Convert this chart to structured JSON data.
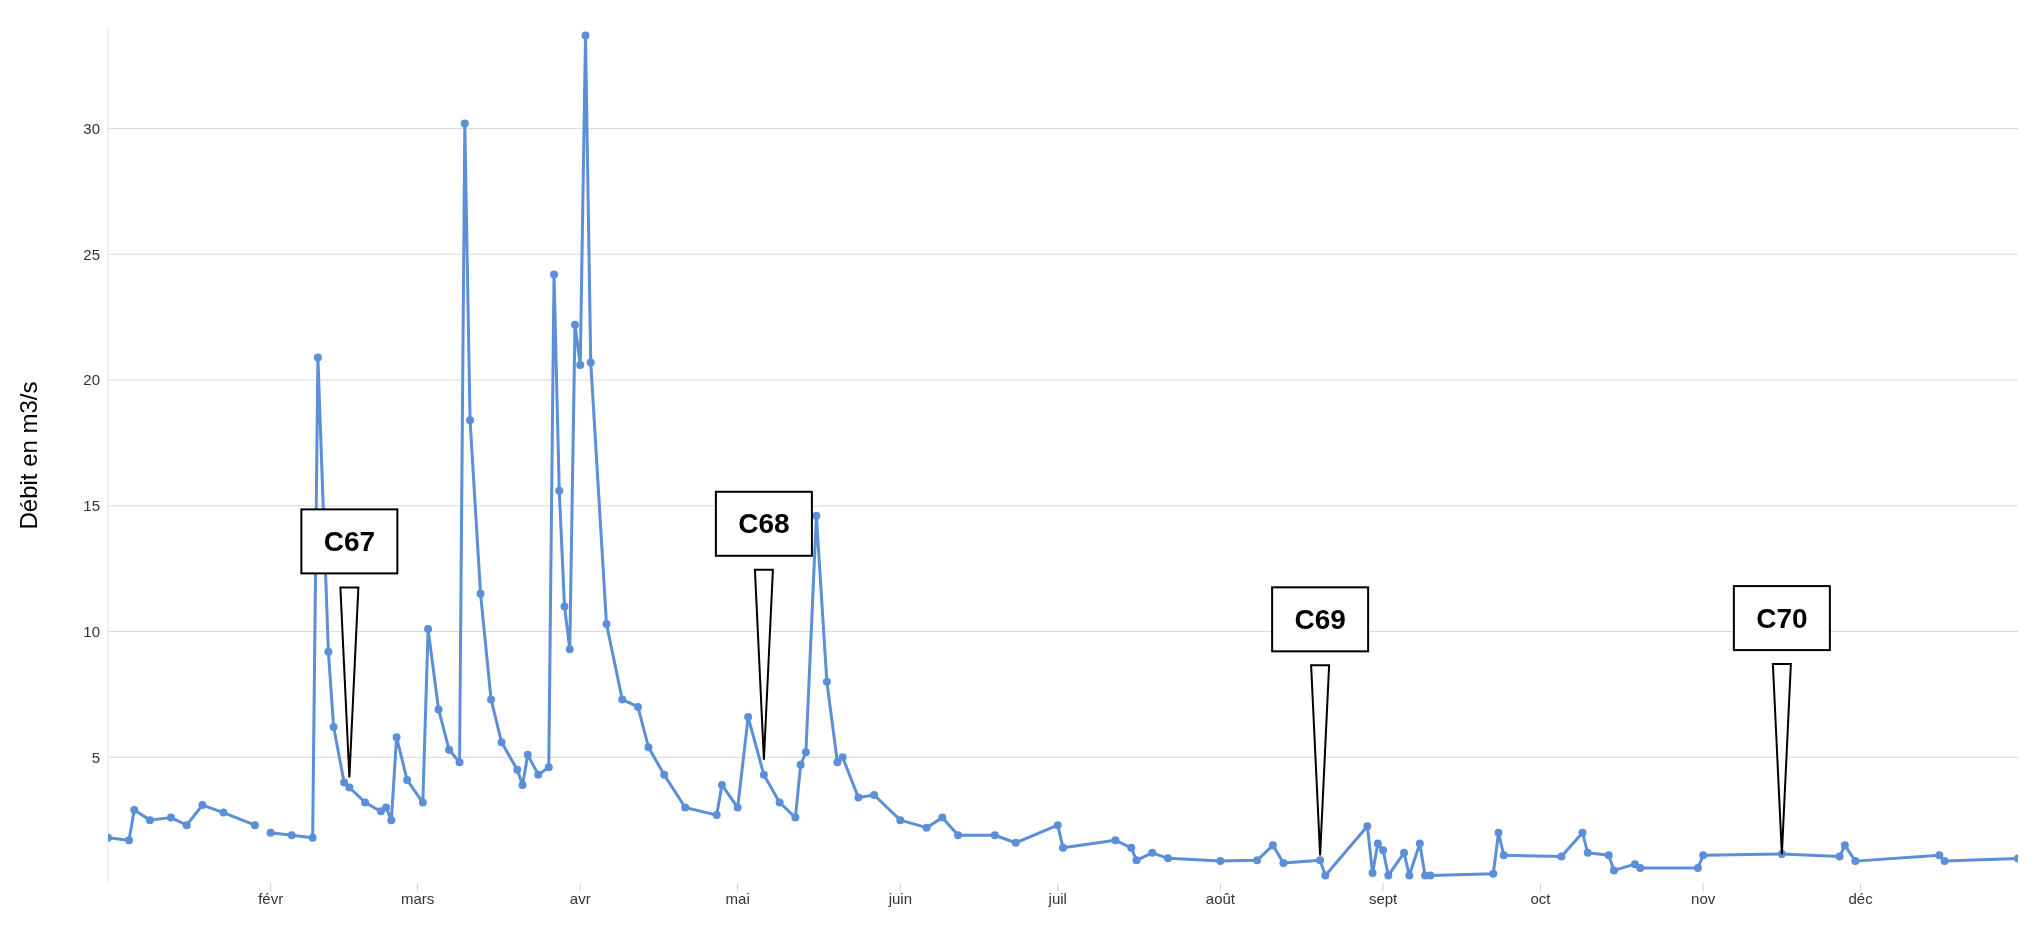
{
  "chart_data": {
    "type": "line",
    "ylabel": "Débit en m3/s",
    "x": [
      "--01-01",
      "--01-05",
      "--01-06",
      "--01-09",
      "--01-13",
      "--01-16",
      "--01-19",
      "--01-23",
      "--01-29",
      "--01-30",
      "--02-01",
      "--02-05",
      "--02-09",
      "--02-10",
      "--02-12",
      "--02-13",
      "--02-15",
      "--02-16",
      "--02-19",
      "--02-22",
      "--02-23",
      "--02-24",
      "--02-25",
      "--02-27",
      "--03-02",
      "--03-03",
      "--03-05",
      "--03-07",
      "--03-09",
      "--03-10",
      "--03-11",
      "--03-13",
      "--03-15",
      "--03-17",
      "--03-20",
      "--03-21",
      "--03-22",
      "--03-24",
      "--03-26",
      "--03-27",
      "--03-28",
      "--03-29",
      "--03-30",
      "--03-31",
      "--04-01",
      "--04-02",
      "--04-03",
      "--04-06",
      "--04-09",
      "--04-12",
      "--04-14",
      "--04-17",
      "--04-21",
      "--04-27",
      "--04-28",
      "--05-01",
      "--05-03",
      "--05-06",
      "--05-09",
      "--05-12",
      "--05-13",
      "--05-14",
      "--05-16",
      "--05-18",
      "--05-20",
      "--05-21",
      "--05-24",
      "--05-27",
      "--06-01",
      "--06-06",
      "--06-09",
      "--06-12",
      "--06-19",
      "--06-23",
      "--07-01",
      "--07-02",
      "--07-12",
      "--07-15",
      "--07-16",
      "--07-19",
      "--07-22",
      "--08-01",
      "--08-08",
      "--08-11",
      "--08-13",
      "--08-20",
      "--08-21",
      "--08-29",
      "--08-30",
      "--08-31",
      "--09-01",
      "--09-02",
      "--09-05",
      "--09-06",
      "--09-08",
      "--09-09",
      "--09-10",
      "--09-22",
      "--09-23",
      "--09-24",
      "--10-05",
      "--10-09",
      "--10-10",
      "--10-14",
      "--10-15",
      "--10-19",
      "--10-20",
      "--10-31",
      "--11-01",
      "--11-16",
      "--11-27",
      "--11-28",
      "--11-30",
      "--12-16",
      "--12-17",
      "--12-31"
    ],
    "series": [
      {
        "color": "#5b8fd8",
        "values": [
          1.8,
          1.7,
          2.9,
          2.5,
          2.6,
          2.3,
          3.1,
          2.8,
          2.3,
          null,
          2.0,
          1.9,
          1.8,
          20.9,
          9.2,
          6.2,
          4.0,
          3.8,
          3.2,
          2.85,
          3.0,
          2.5,
          5.8,
          4.1,
          3.2,
          10.1,
          6.9,
          5.3,
          4.8,
          30.2,
          18.4,
          11.5,
          7.3,
          5.6,
          4.5,
          3.9,
          5.1,
          4.3,
          4.6,
          24.2,
          15.6,
          11.0,
          9.3,
          22.2,
          20.6,
          33.7,
          20.7,
          10.3,
          7.3,
          7.0,
          5.4,
          4.3,
          3.0,
          2.7,
          3.9,
          3.0,
          6.6,
          4.3,
          3.2,
          2.6,
          4.7,
          5.2,
          14.6,
          8.0,
          4.8,
          5.0,
          3.4,
          3.5,
          2.5,
          2.2,
          2.6,
          1.9,
          1.9,
          1.6,
          2.3,
          1.4,
          1.7,
          1.4,
          0.9,
          1.2,
          0.98,
          0.87,
          0.9,
          1.5,
          0.8,
          0.9,
          0.3,
          2.26,
          0.4,
          1.57,
          1.3,
          0.3,
          1.2,
          0.3,
          1.57,
          0.3,
          0.3,
          0.37,
          2.0,
          1.1,
          1.05,
          2.0,
          1.2,
          1.1,
          0.5,
          0.75,
          0.6,
          0.6,
          1.1,
          1.15,
          1.05,
          1.5,
          0.87,
          1.1,
          0.87,
          0.97
        ]
      }
    ],
    "xlim": [
      "--01-01",
      "--12-31"
    ],
    "xticks": [
      {
        "value": "--02-01",
        "label": "févr"
      },
      {
        "value": "--03-01",
        "label": "mars"
      },
      {
        "value": "--04-01",
        "label": "avr"
      },
      {
        "value": "--05-01",
        "label": "mai"
      },
      {
        "value": "--06-01",
        "label": "juin"
      },
      {
        "value": "--07-01",
        "label": "juil"
      },
      {
        "value": "--08-01",
        "label": "août"
      },
      {
        "value": "--09-01",
        "label": "sept"
      },
      {
        "value": "--10-01",
        "label": "oct"
      },
      {
        "value": "--11-01",
        "label": "nov"
      },
      {
        "value": "--12-01",
        "label": "déc"
      }
    ],
    "ylim": [
      0,
      34
    ],
    "yticks": [
      5,
      10,
      15,
      20,
      25,
      30
    ],
    "grid": "y",
    "legend": false,
    "marker": "circle",
    "line_style": "solid",
    "annotations": [
      {
        "text": "C67",
        "x": "--02-16",
        "y": 4.2
      },
      {
        "text": "C68",
        "x": "--05-06",
        "y": 4.9
      },
      {
        "text": "C69",
        "x": "--08-20",
        "y": 1.1
      },
      {
        "text": "C70",
        "x": "--11-16",
        "y": 1.15
      }
    ]
  }
}
